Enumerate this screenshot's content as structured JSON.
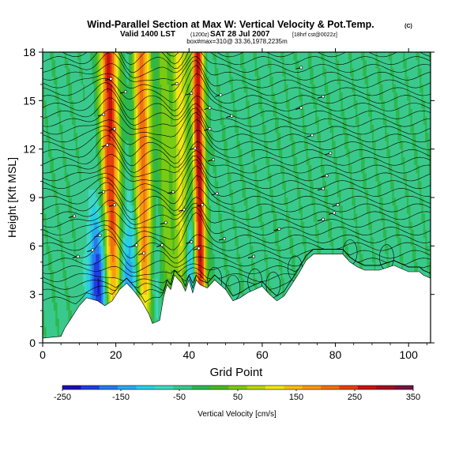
{
  "chart_data": {
    "type": "heatmap",
    "title": "Wind-Parallel Section at Max W: Vertical Velocity & Pot.Temp.",
    "title_mark": "(C)",
    "subtitle_main": "Valid 1400 LST",
    "subtitle_tz": "(1200z)",
    "subtitle_date": "SAT 28 Jul 2007",
    "subtitle_src": "[18hrf cst@0022z]",
    "subtitle_box": "box#max=310@ 33.36,1978,2235m",
    "xlabel": "Grid Point",
    "ylabel": "Height [Kft MSL]",
    "xlim": [
      0,
      106
    ],
    "ylim": [
      0,
      18
    ],
    "x_ticks": [
      "0",
      "20",
      "40",
      "60",
      "80",
      "100"
    ],
    "y_ticks": [
      "0",
      "3",
      "6",
      "9",
      "12",
      "15",
      "18"
    ],
    "colorbar": {
      "label": "Vertical Velocity [cm/s]",
      "ticks": [
        "-250",
        "-150",
        "-50",
        "50",
        "150",
        "250",
        "350"
      ],
      "range": [
        -250,
        350
      ],
      "colors": [
        "#1a10b4",
        "#1f3fe0",
        "#2a78ee",
        "#2aa8ee",
        "#26cfe6",
        "#3ed8c4",
        "#3ac98c",
        "#2db84f",
        "#4cb822",
        "#7acb14",
        "#b9d810",
        "#f0e614",
        "#f7c010",
        "#f79a12",
        "#f07010",
        "#e5400e",
        "#c8140e",
        "#a0101e",
        "#7c1040"
      ]
    },
    "updrafts": [
      {
        "x": 18.5,
        "w": 2.6,
        "value": 320
      },
      {
        "x": 27.5,
        "w": 2.4,
        "value": 250
      },
      {
        "x": 42.8,
        "w": 1.6,
        "value": 340
      },
      {
        "x": 38.0,
        "w": 2.2,
        "value": 150
      },
      {
        "x": 33.5,
        "w": 1.8,
        "value": 90
      }
    ],
    "downdrafts": [
      {
        "x": 16.0,
        "w": 3.0,
        "value": -200
      },
      {
        "x": 24.0,
        "w": 2.8,
        "value": -120
      },
      {
        "x": 40.5,
        "w": 1.8,
        "value": -130
      },
      {
        "x": 31.0,
        "w": 2.0,
        "value": -60
      }
    ],
    "terrain": [
      [
        0,
        0.3
      ],
      [
        5,
        0.4
      ],
      [
        6,
        0.9
      ],
      [
        8,
        1.6
      ],
      [
        10,
        2.3
      ],
      [
        12,
        2.8
      ],
      [
        15,
        2.6
      ],
      [
        17,
        2.3
      ],
      [
        19,
        2.6
      ],
      [
        21,
        3.3
      ],
      [
        23,
        3.7
      ],
      [
        25,
        3.2
      ],
      [
        27,
        2.6
      ],
      [
        29,
        1.8
      ],
      [
        30,
        1.2
      ],
      [
        32,
        1.4
      ],
      [
        33,
        2.8
      ],
      [
        34,
        3.6
      ],
      [
        35,
        3.3
      ],
      [
        36,
        4.2
      ],
      [
        38,
        3.7
      ],
      [
        39,
        3.2
      ],
      [
        40,
        3.9
      ],
      [
        41,
        3.1
      ],
      [
        42,
        3.9
      ],
      [
        43,
        3.6
      ],
      [
        45,
        3.4
      ],
      [
        47,
        3.9
      ],
      [
        50,
        3.3
      ],
      [
        52,
        2.6
      ],
      [
        54,
        2.8
      ],
      [
        56,
        3.1
      ],
      [
        58,
        3.3
      ],
      [
        60,
        3.5
      ],
      [
        62,
        3.0
      ],
      [
        64,
        2.6
      ],
      [
        66,
        2.9
      ],
      [
        68,
        3.6
      ],
      [
        70,
        4.3
      ],
      [
        72,
        5.1
      ],
      [
        74,
        5.5
      ],
      [
        82,
        5.5
      ],
      [
        84,
        5.0
      ],
      [
        86,
        4.7
      ],
      [
        88,
        4.5
      ],
      [
        92,
        4.5
      ],
      [
        96,
        4.8
      ],
      [
        100,
        4.4
      ],
      [
        103,
        4.4
      ],
      [
        104,
        4.2
      ],
      [
        106,
        4.0
      ]
    ]
  }
}
